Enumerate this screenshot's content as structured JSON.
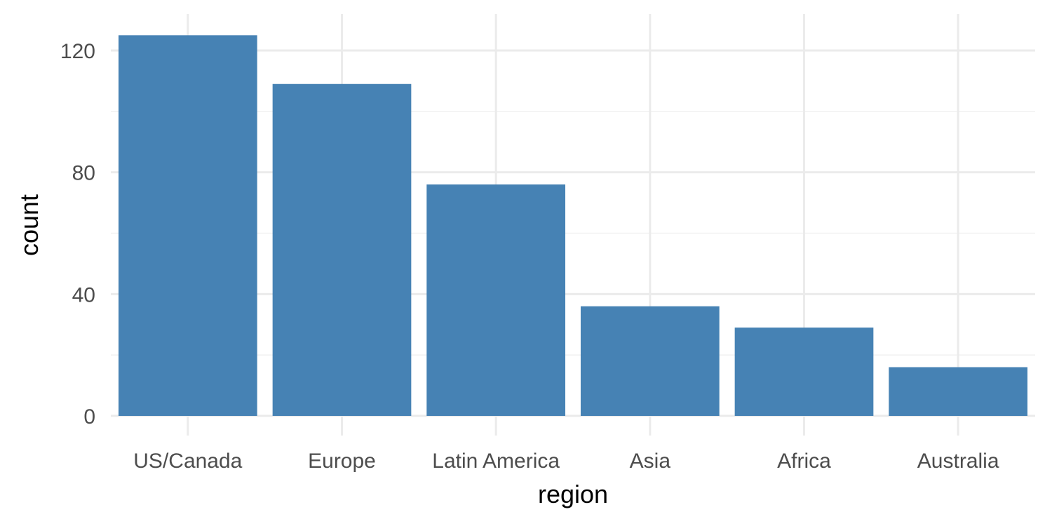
{
  "chart_data": {
    "type": "bar",
    "title": "",
    "xlabel": "region",
    "ylabel": "count",
    "categories": [
      "US/Canada",
      "Europe",
      "Latin America",
      "Asia",
      "Africa",
      "Australia"
    ],
    "values": [
      125,
      109,
      76,
      36,
      29,
      16
    ],
    "ylim": [
      0,
      127
    ],
    "yticks": [
      0,
      40,
      80,
      120
    ],
    "yticks_minor": [
      20,
      60,
      100
    ],
    "grid": true,
    "legend": "none",
    "bar_color": "#4682B4",
    "grid_color": "#EBEBEB",
    "tick_label_color": "#4D4D4D"
  }
}
